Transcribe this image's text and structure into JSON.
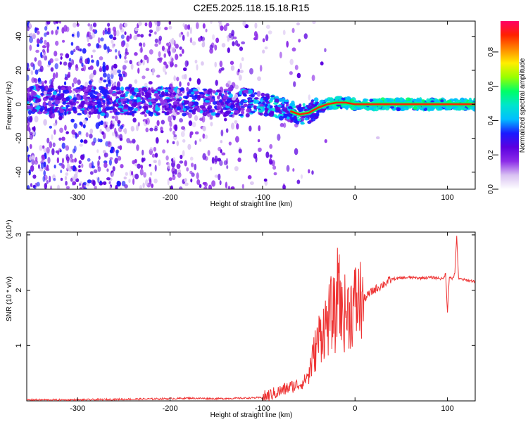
{
  "page_title": "C2E5.2025.118.15.18.R15",
  "colors": {
    "snr_line": "#ee3333",
    "frame": "#000000",
    "background": "#ffffff"
  },
  "chart_data": [
    {
      "type": "heatmap",
      "title": "C2E5.2025.118.15.18.R15",
      "xlabel": "Height of straight line (km)",
      "ylabel": "Frequency (Hz)",
      "xlim": [
        -355,
        130
      ],
      "ylim": [
        -50,
        49
      ],
      "x_ticks": [
        -300,
        -200,
        -100,
        0,
        100
      ],
      "x_tick_labels": [
        "-300",
        "-200",
        "-100",
        "0",
        "100"
      ],
      "y_ticks": [
        -40,
        -20,
        0,
        20,
        40
      ],
      "y_tick_labels": [
        "-40",
        "-20",
        "0",
        "20",
        "40"
      ],
      "colorbar": {
        "label": "Normalized spectral amplitude",
        "range": [
          0,
          0.98
        ],
        "ticks": [
          0.0,
          0.2,
          0.4,
          0.6,
          0.8
        ],
        "tick_labels": [
          "0.0",
          "0.2",
          "0.4",
          "0.6",
          "0.8"
        ],
        "colormap": [
          "#ffffff",
          "#d9c2f2",
          "#8c2ce8",
          "#5b00e0",
          "#1a1aff",
          "#00bfff",
          "#00e5cc",
          "#00ff66",
          "#99ff00",
          "#ffee00",
          "#ff8800",
          "#ff2200",
          "#ff0066"
        ]
      },
      "ridge": {
        "x": [
          -355,
          -300,
          -250,
          -200,
          -150,
          -110,
          -90,
          -75,
          -60,
          -50,
          -40,
          -30,
          -20,
          -10,
          0,
          50,
          100,
          130
        ],
        "y": [
          3,
          2,
          2,
          2,
          1,
          1,
          -1,
          -3,
          -6,
          -5,
          -2,
          0,
          1,
          1,
          0,
          0,
          0,
          0
        ]
      },
      "grid": false
    },
    {
      "type": "line",
      "xlabel": "Height of straight line (km)",
      "ylabel": "SNR (10 * v/v)",
      "y_multiplier_label": "(x10⁴)",
      "xlim": [
        -355,
        130
      ],
      "ylim": [
        0,
        3.05
      ],
      "x_ticks": [
        -300,
        -200,
        -100,
        0,
        100
      ],
      "x_tick_labels": [
        "-300",
        "-200",
        "-100",
        "0",
        "100"
      ],
      "y_ticks": [
        1,
        2,
        3
      ],
      "y_tick_labels": [
        "1",
        "2",
        "3"
      ],
      "series": [
        {
          "x": [
            -355,
            -300,
            -250,
            -200,
            -180,
            -150,
            -120,
            -100,
            -90,
            -80,
            -70,
            -60,
            -55,
            -50,
            -45,
            -40,
            -35,
            -30,
            -25,
            -20,
            -18,
            -15,
            -10,
            -5,
            0,
            10,
            20,
            30,
            40,
            50,
            60,
            70,
            80,
            90,
            95,
            98,
            100,
            102,
            105,
            108,
            110,
            112,
            115,
            120,
            125,
            130
          ],
          "y": [
            0.02,
            0.02,
            0.03,
            0.04,
            0.05,
            0.04,
            0.05,
            0.06,
            0.12,
            0.18,
            0.25,
            0.3,
            0.35,
            0.5,
            0.8,
            1.1,
            1.3,
            1.4,
            1.6,
            1.5,
            2.55,
            1.55,
            1.6,
            1.65,
            1.75,
            1.85,
            2.0,
            2.1,
            2.2,
            2.22,
            2.23,
            2.22,
            2.23,
            2.22,
            2.2,
            2.3,
            1.6,
            2.25,
            2.2,
            2.3,
            3.0,
            2.2,
            2.2,
            2.18,
            2.17,
            2.16
          ]
        }
      ],
      "grid": false
    }
  ]
}
